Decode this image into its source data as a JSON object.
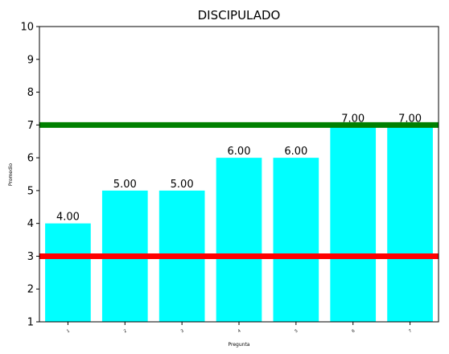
{
  "chart_data": {
    "type": "bar",
    "title": "DISCIPULADO",
    "xlabel": "Pregunta",
    "ylabel": "Promedio",
    "categories": [
      "1",
      "2",
      "3",
      "4",
      "5",
      "6",
      "7"
    ],
    "values": [
      4.0,
      5.0,
      5.0,
      6.0,
      6.0,
      7.0,
      7.0
    ],
    "data_labels": [
      "4.00",
      "5.00",
      "5.00",
      "6.00",
      "6.00",
      "7.00",
      "7.00"
    ],
    "ylim": [
      1,
      10
    ],
    "yticks": [
      "1",
      "2",
      "3",
      "4",
      "5",
      "6",
      "7",
      "8",
      "9",
      "10"
    ],
    "bar_color": "#00ffff",
    "reference_lines": [
      {
        "value": 7,
        "color": "#008000"
      },
      {
        "value": 3,
        "color": "#ff0000"
      }
    ],
    "grid": false,
    "legend": "none"
  }
}
